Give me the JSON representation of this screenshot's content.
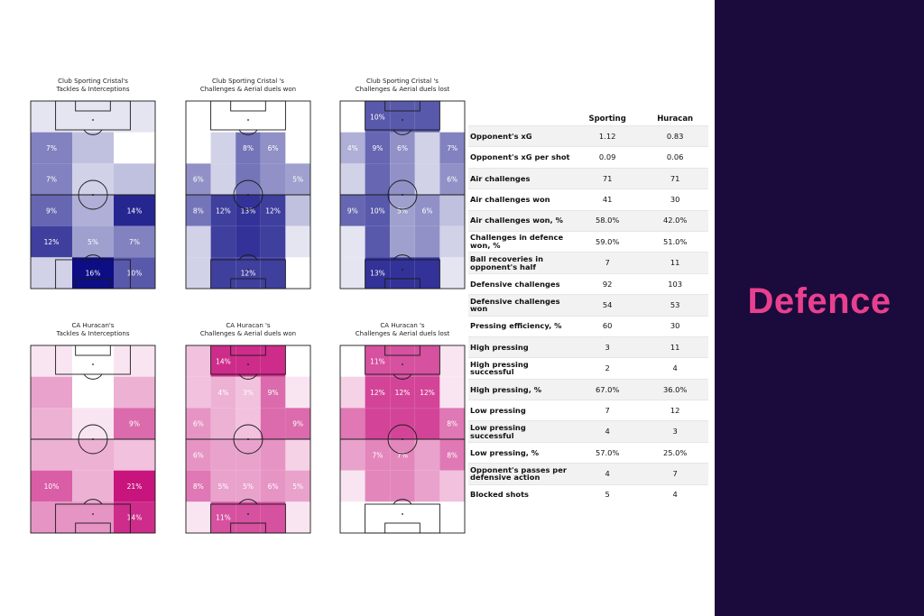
{
  "side_title": "Defence",
  "colors": {
    "panel_bg": "#1b0a3c",
    "title_color": "#e8408f",
    "blue_scale": "#0d0d85",
    "pink_scale": "#c8147d"
  },
  "chart_data": [
    {
      "type": "heatmap",
      "title": "Club Sporting Cristal's\nTackles & Interceptions",
      "team": "Sporting Cristal",
      "color_scale": "blue",
      "zones": [
        {
          "col": 0,
          "row": 0,
          "value": 1
        },
        {
          "col": 1,
          "row": 0,
          "value": 1
        },
        {
          "col": 2,
          "row": 0,
          "value": 1
        },
        {
          "col": 0,
          "row": 1,
          "value": 7
        },
        {
          "col": 1,
          "row": 1,
          "value": 3
        },
        {
          "col": 2,
          "row": 1,
          "value": 0
        },
        {
          "col": 0,
          "row": 2,
          "value": 7
        },
        {
          "col": 1,
          "row": 2,
          "value": 2
        },
        {
          "col": 2,
          "row": 2,
          "value": 3
        },
        {
          "col": 0,
          "row": 3,
          "value": 9
        },
        {
          "col": 1,
          "row": 3,
          "value": 4
        },
        {
          "col": 2,
          "row": 3,
          "value": 14
        },
        {
          "col": 0,
          "row": 4,
          "value": 12
        },
        {
          "col": 1,
          "row": 4,
          "value": 5
        },
        {
          "col": 2,
          "row": 4,
          "value": 7
        },
        {
          "col": 0,
          "row": 5,
          "value": 2
        },
        {
          "col": 1,
          "row": 5,
          "value": 16
        },
        {
          "col": 2,
          "row": 5,
          "value": 10
        }
      ],
      "labels": [
        "",
        "",
        "",
        "7%",
        "",
        "",
        "7%",
        "",
        "",
        "9%",
        "",
        "14%",
        "12%",
        "5%",
        "7%",
        "",
        "16%",
        "10%"
      ]
    },
    {
      "type": "heatmap",
      "title": "Club Sporting Cristal 's\nChallenges & Aerial duels won",
      "team": "Sporting Cristal",
      "color_scale": "blue",
      "zones": [
        {
          "col": 0,
          "row": 0,
          "value": 0
        },
        {
          "col": 1,
          "row": 0,
          "value": 0
        },
        {
          "col": 2,
          "row": 0,
          "value": 0
        },
        {
          "col": 3,
          "row": 0,
          "value": 0
        },
        {
          "col": 4,
          "row": 0,
          "value": 0
        },
        {
          "col": 0,
          "row": 1,
          "value": 0
        },
        {
          "col": 1,
          "row": 1,
          "value": 2
        },
        {
          "col": 2,
          "row": 1,
          "value": 8
        },
        {
          "col": 3,
          "row": 1,
          "value": 6
        },
        {
          "col": 4,
          "row": 1,
          "value": 0
        },
        {
          "col": 0,
          "row": 2,
          "value": 6
        },
        {
          "col": 1,
          "row": 2,
          "value": 2
        },
        {
          "col": 2,
          "row": 2,
          "value": 8
        },
        {
          "col": 3,
          "row": 2,
          "value": 6
        },
        {
          "col": 4,
          "row": 2,
          "value": 5
        },
        {
          "col": 0,
          "row": 3,
          "value": 8
        },
        {
          "col": 1,
          "row": 3,
          "value": 12
        },
        {
          "col": 2,
          "row": 3,
          "value": 13
        },
        {
          "col": 3,
          "row": 3,
          "value": 12
        },
        {
          "col": 4,
          "row": 3,
          "value": 3
        },
        {
          "col": 0,
          "row": 4,
          "value": 2
        },
        {
          "col": 1,
          "row": 4,
          "value": 12
        },
        {
          "col": 2,
          "row": 4,
          "value": 13
        },
        {
          "col": 3,
          "row": 4,
          "value": 12
        },
        {
          "col": 4,
          "row": 4,
          "value": 1
        },
        {
          "col": 0,
          "row": 5,
          "value": 2
        },
        {
          "col": 1,
          "row": 5,
          "value": 12
        },
        {
          "col": 2,
          "row": 5,
          "value": 12
        },
        {
          "col": 3,
          "row": 5,
          "value": 12
        },
        {
          "col": 4,
          "row": 5,
          "value": 0
        }
      ],
      "labels": [
        "",
        "",
        "",
        "",
        "",
        "",
        "",
        "8%",
        "6%",
        "",
        "6%",
        "",
        "",
        "",
        "5%",
        "8%",
        "12%",
        "13%",
        "12%",
        "",
        "",
        "",
        "",
        "",
        "",
        "",
        "",
        "12%",
        "",
        ""
      ]
    },
    {
      "type": "heatmap",
      "title": "Club Sporting Cristal 's\nChallenges & Aerial duels lost",
      "team": "Sporting Cristal",
      "color_scale": "blue",
      "zones": [
        {
          "col": 0,
          "row": 0,
          "value": 0
        },
        {
          "col": 1,
          "row": 0,
          "value": 10
        },
        {
          "col": 2,
          "row": 0,
          "value": 10
        },
        {
          "col": 3,
          "row": 0,
          "value": 10
        },
        {
          "col": 4,
          "row": 0,
          "value": 0
        },
        {
          "col": 0,
          "row": 1,
          "value": 4
        },
        {
          "col": 1,
          "row": 1,
          "value": 9
        },
        {
          "col": 2,
          "row": 1,
          "value": 6
        },
        {
          "col": 3,
          "row": 1,
          "value": 2
        },
        {
          "col": 4,
          "row": 1,
          "value": 7
        },
        {
          "col": 0,
          "row": 2,
          "value": 2
        },
        {
          "col": 1,
          "row": 2,
          "value": 9
        },
        {
          "col": 2,
          "row": 2,
          "value": 6
        },
        {
          "col": 3,
          "row": 2,
          "value": 2
        },
        {
          "col": 4,
          "row": 2,
          "value": 6
        },
        {
          "col": 0,
          "row": 3,
          "value": 9
        },
        {
          "col": 1,
          "row": 3,
          "value": 10
        },
        {
          "col": 2,
          "row": 3,
          "value": 5
        },
        {
          "col": 3,
          "row": 3,
          "value": 6
        },
        {
          "col": 4,
          "row": 3,
          "value": 3
        },
        {
          "col": 0,
          "row": 4,
          "value": 1
        },
        {
          "col": 1,
          "row": 4,
          "value": 10
        },
        {
          "col": 2,
          "row": 4,
          "value": 5
        },
        {
          "col": 3,
          "row": 4,
          "value": 6
        },
        {
          "col": 4,
          "row": 4,
          "value": 2
        },
        {
          "col": 0,
          "row": 5,
          "value": 1
        },
        {
          "col": 1,
          "row": 5,
          "value": 13
        },
        {
          "col": 2,
          "row": 5,
          "value": 13
        },
        {
          "col": 3,
          "row": 5,
          "value": 13
        },
        {
          "col": 4,
          "row": 5,
          "value": 1
        }
      ],
      "labels": [
        "",
        "10%",
        "",
        "",
        "",
        "4%",
        "9%",
        "6%",
        "",
        "7%",
        "",
        "",
        "",
        "",
        "6%",
        "9%",
        "10%",
        "5%",
        "6%",
        "",
        "",
        "",
        "",
        "",
        "",
        "",
        "13%",
        "",
        "",
        ""
      ]
    },
    {
      "type": "heatmap",
      "title": "CA Huracan's\nTackles & Interceptions",
      "team": "Huracan",
      "color_scale": "pink",
      "zones": [
        {
          "col": 0,
          "row": 0,
          "value": 1
        },
        {
          "col": 1,
          "row": 0,
          "value": 0
        },
        {
          "col": 2,
          "row": 0,
          "value": 1
        },
        {
          "col": 0,
          "row": 1,
          "value": 5
        },
        {
          "col": 1,
          "row": 1,
          "value": 0
        },
        {
          "col": 2,
          "row": 1,
          "value": 4
        },
        {
          "col": 0,
          "row": 2,
          "value": 4
        },
        {
          "col": 1,
          "row": 2,
          "value": 1
        },
        {
          "col": 2,
          "row": 2,
          "value": 9
        },
        {
          "col": 0,
          "row": 3,
          "value": 4
        },
        {
          "col": 1,
          "row": 3,
          "value": 4
        },
        {
          "col": 2,
          "row": 3,
          "value": 3
        },
        {
          "col": 0,
          "row": 4,
          "value": 10
        },
        {
          "col": 1,
          "row": 4,
          "value": 4
        },
        {
          "col": 2,
          "row": 4,
          "value": 21
        },
        {
          "col": 0,
          "row": 5,
          "value": 6
        },
        {
          "col": 1,
          "row": 5,
          "value": 6
        },
        {
          "col": 2,
          "row": 5,
          "value": 14
        }
      ],
      "labels": [
        "",
        "",
        "",
        "",
        "",
        "",
        "",
        "",
        "9%",
        "",
        "",
        "",
        "10%",
        "",
        "21%",
        "",
        "",
        "14%"
      ]
    },
    {
      "type": "heatmap",
      "title": "CA Huracan 's\nChallenges & Aerial duels won",
      "team": "Huracan",
      "color_scale": "pink",
      "zones": [
        {
          "col": 0,
          "row": 0,
          "value": 3
        },
        {
          "col": 1,
          "row": 0,
          "value": 14
        },
        {
          "col": 2,
          "row": 0,
          "value": 14
        },
        {
          "col": 3,
          "row": 0,
          "value": 14
        },
        {
          "col": 4,
          "row": 0,
          "value": 0
        },
        {
          "col": 0,
          "row": 1,
          "value": 3
        },
        {
          "col": 1,
          "row": 1,
          "value": 4
        },
        {
          "col": 2,
          "row": 1,
          "value": 3
        },
        {
          "col": 3,
          "row": 1,
          "value": 9
        },
        {
          "col": 4,
          "row": 1,
          "value": 1
        },
        {
          "col": 0,
          "row": 2,
          "value": 6
        },
        {
          "col": 1,
          "row": 2,
          "value": 4
        },
        {
          "col": 2,
          "row": 2,
          "value": 3
        },
        {
          "col": 3,
          "row": 2,
          "value": 9
        },
        {
          "col": 4,
          "row": 2,
          "value": 9
        },
        {
          "col": 0,
          "row": 3,
          "value": 6
        },
        {
          "col": 1,
          "row": 3,
          "value": 5
        },
        {
          "col": 2,
          "row": 3,
          "value": 5
        },
        {
          "col": 3,
          "row": 3,
          "value": 6
        },
        {
          "col": 4,
          "row": 3,
          "value": 2
        },
        {
          "col": 0,
          "row": 4,
          "value": 8
        },
        {
          "col": 1,
          "row": 4,
          "value": 5
        },
        {
          "col": 2,
          "row": 4,
          "value": 5
        },
        {
          "col": 3,
          "row": 4,
          "value": 6
        },
        {
          "col": 4,
          "row": 4,
          "value": 5
        },
        {
          "col": 0,
          "row": 5,
          "value": 1
        },
        {
          "col": 1,
          "row": 5,
          "value": 11
        },
        {
          "col": 2,
          "row": 5,
          "value": 11
        },
        {
          "col": 3,
          "row": 5,
          "value": 11
        },
        {
          "col": 4,
          "row": 5,
          "value": 1
        }
      ],
      "labels": [
        "",
        "14%",
        "",
        "",
        "",
        "",
        "4%",
        "3%",
        "9%",
        "",
        "6%",
        "",
        "",
        "",
        "9%",
        "6%",
        "",
        "",
        "",
        "",
        "8%",
        "5%",
        "5%",
        "6%",
        "5%",
        "",
        "11%",
        "",
        "",
        ""
      ]
    },
    {
      "type": "heatmap",
      "title": "CA Huracan 's\nChallenges & Aerial duels lost",
      "team": "Huracan",
      "color_scale": "pink",
      "zones": [
        {
          "col": 0,
          "row": 0,
          "value": 0
        },
        {
          "col": 1,
          "row": 0,
          "value": 11
        },
        {
          "col": 2,
          "row": 0,
          "value": 11
        },
        {
          "col": 3,
          "row": 0,
          "value": 11
        },
        {
          "col": 4,
          "row": 0,
          "value": 1
        },
        {
          "col": 0,
          "row": 1,
          "value": 2
        },
        {
          "col": 1,
          "row": 1,
          "value": 12
        },
        {
          "col": 2,
          "row": 1,
          "value": 12
        },
        {
          "col": 3,
          "row": 1,
          "value": 12
        },
        {
          "col": 4,
          "row": 1,
          "value": 1
        },
        {
          "col": 0,
          "row": 2,
          "value": 8
        },
        {
          "col": 1,
          "row": 2,
          "value": 12
        },
        {
          "col": 2,
          "row": 2,
          "value": 12
        },
        {
          "col": 3,
          "row": 2,
          "value": 12
        },
        {
          "col": 4,
          "row": 2,
          "value": 8
        },
        {
          "col": 0,
          "row": 3,
          "value": 5
        },
        {
          "col": 1,
          "row": 3,
          "value": 7
        },
        {
          "col": 2,
          "row": 3,
          "value": 7
        },
        {
          "col": 3,
          "row": 3,
          "value": 5
        },
        {
          "col": 4,
          "row": 3,
          "value": 8
        },
        {
          "col": 0,
          "row": 4,
          "value": 1
        },
        {
          "col": 1,
          "row": 4,
          "value": 7
        },
        {
          "col": 2,
          "row": 4,
          "value": 7
        },
        {
          "col": 3,
          "row": 4,
          "value": 5
        },
        {
          "col": 4,
          "row": 4,
          "value": 3
        },
        {
          "col": 0,
          "row": 5,
          "value": 0
        },
        {
          "col": 1,
          "row": 5,
          "value": 0
        },
        {
          "col": 2,
          "row": 5,
          "value": 0
        },
        {
          "col": 3,
          "row": 5,
          "value": 0
        },
        {
          "col": 4,
          "row": 5,
          "value": 0
        }
      ],
      "labels": [
        "",
        "11%",
        "",
        "",
        "",
        "",
        "12%",
        "12%",
        "12%",
        "",
        "",
        "",
        "",
        "",
        "8%",
        "",
        "7%",
        "7%",
        "",
        "8%",
        "",
        "",
        "",
        "",
        "",
        "",
        "",
        "",
        "",
        ""
      ]
    }
  ],
  "stats_table": {
    "headers": [
      "",
      "Sporting",
      "Huracan"
    ],
    "rows": [
      {
        "metric": "Opponent's xG",
        "sporting": "1.12",
        "huracan": "0.83"
      },
      {
        "metric": "Opponent's xG per shot",
        "sporting": "0.09",
        "huracan": "0.06"
      },
      {
        "metric": "Air challenges",
        "sporting": "71",
        "huracan": "71"
      },
      {
        "metric": "Air challenges won",
        "sporting": "41",
        "huracan": "30"
      },
      {
        "metric": "Air challenges won, %",
        "sporting": "58.0%",
        "huracan": "42.0%"
      },
      {
        "metric": "Challenges in defence won, %",
        "sporting": "59.0%",
        "huracan": "51.0%"
      },
      {
        "metric": "Ball recoveries in opponent's half",
        "sporting": "7",
        "huracan": "11"
      },
      {
        "metric": "Defensive challenges",
        "sporting": "92",
        "huracan": "103"
      },
      {
        "metric": "Defensive challenges won",
        "sporting": "54",
        "huracan": "53"
      },
      {
        "metric": "Pressing efficiency, %",
        "sporting": "60",
        "huracan": "30"
      },
      {
        "metric": "High pressing",
        "sporting": "3",
        "huracan": "11"
      },
      {
        "metric": "High pressing successful",
        "sporting": "2",
        "huracan": "4"
      },
      {
        "metric": "High pressing, %",
        "sporting": "67.0%",
        "huracan": "36.0%"
      },
      {
        "metric": "Low pressing",
        "sporting": "7",
        "huracan": "12"
      },
      {
        "metric": "Low pressing successful",
        "sporting": "4",
        "huracan": "3"
      },
      {
        "metric": "Low pressing, %",
        "sporting": "57.0%",
        "huracan": "25.0%"
      },
      {
        "metric": "Opponent's passes per defensive action",
        "sporting": "4",
        "huracan": "7"
      },
      {
        "metric": "Blocked shots",
        "sporting": "5",
        "huracan": "4"
      }
    ]
  }
}
